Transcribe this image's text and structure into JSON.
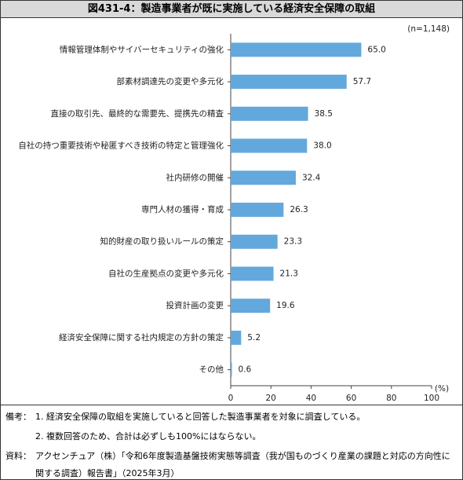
{
  "chart_data": {
    "type": "bar",
    "orientation": "horizontal",
    "title": "図431-4：製造事業者が既に実施している経済安全保障の取組",
    "note": "(n=1,148)",
    "x_label": "(%)",
    "categories": [
      "情報管理体制やサイバーセキュリティの強化",
      "部素材調達先の変更や多元化",
      "直接の取引先、最終的な需要先、提携先の精査",
      "自社の持つ重要技術や秘匿すべき技術の特定と管理強化",
      "社内研修の開催",
      "専門人材の獲得・育成",
      "知的財産の取り扱いルールの策定",
      "自社の生産拠点の変更や多元化",
      "投資計画の変更",
      "経済安全保障に関する社内規定の方針の策定",
      "その他"
    ],
    "values": [
      65.0,
      57.7,
      38.5,
      38.0,
      32.4,
      26.3,
      23.3,
      21.3,
      19.6,
      5.2,
      0.6
    ],
    "value_labels": [
      "65.0",
      "57.7",
      "38.5",
      "38.0",
      "32.4",
      "26.3",
      "23.3",
      "21.3",
      "19.6",
      "5.2",
      "0.6"
    ],
    "color": "#62a8dc",
    "xlim": [
      0,
      100
    ],
    "xticks": [
      0,
      20,
      40,
      60,
      80,
      100
    ],
    "grid": false
  },
  "notes": {
    "label": "備考：",
    "items": [
      "1. 経済安全保障の取組を実施していると回答した製造事業者を対象に調査している。",
      "2. 複数回答のため、合計は必ずしも100%にはならない。"
    ]
  },
  "source": {
    "label": "資料：",
    "text": "アクセンチュア（株）「令和6年度製造基盤技術実態等調査（我が国ものづくり産業の課題と対応の方向性に関する調査）報告書」（2025年3月）"
  }
}
